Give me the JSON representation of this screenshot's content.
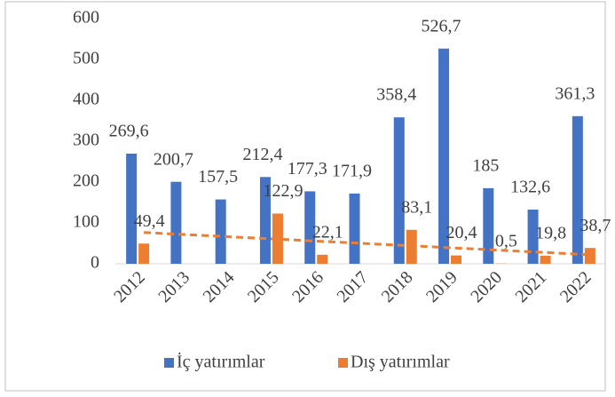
{
  "chart_data": {
    "type": "bar",
    "categories": [
      "2012",
      "2013",
      "2014",
      "2015",
      "2016",
      "2017",
      "2018",
      "2019",
      "2020",
      "2021",
      "2022"
    ],
    "series": [
      {
        "name": "İç yatırımlar",
        "color": "#4472c4",
        "values": [
          269.6,
          200.7,
          157.5,
          212.4,
          177.3,
          171.9,
          358.4,
          526.7,
          185,
          132.6,
          361.3
        ],
        "value_labels": [
          "269,6",
          "200,7",
          "157,5",
          "212,4",
          "177,3",
          "171,9",
          "358,4",
          "526,7",
          "185",
          "132,6",
          "361,3"
        ]
      },
      {
        "name": "Dış yatırımlar",
        "color": "#ed7d31",
        "trendline": "linear",
        "values": [
          49.4,
          null,
          null,
          122.9,
          22.1,
          null,
          83.1,
          20.4,
          0.5,
          19.8,
          38.7
        ],
        "value_labels": [
          "49,4",
          null,
          null,
          "122,9",
          "22,1",
          null,
          "83,1",
          "20,4",
          "0,5",
          "19,8",
          "38,7"
        ]
      }
    ],
    "ylim": [
      0,
      600
    ],
    "yticks": [
      0,
      100,
      200,
      300,
      400,
      500,
      600
    ],
    "grid": false,
    "legend": "bottom"
  }
}
